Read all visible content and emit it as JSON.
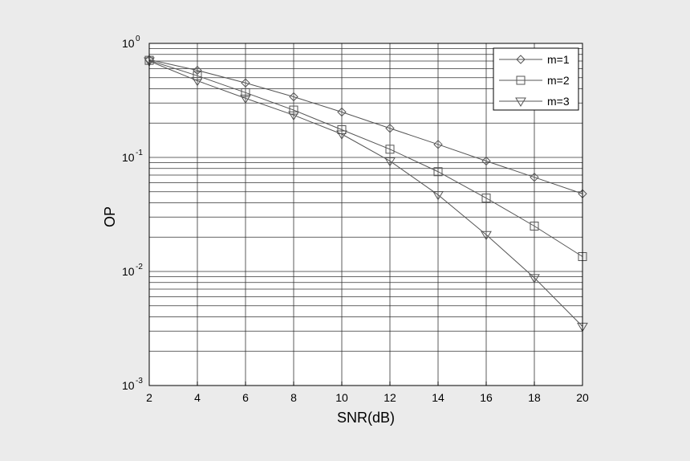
{
  "chart_data": {
    "type": "line",
    "title": "",
    "xlabel": "SNR(dB)",
    "ylabel": "OP",
    "xlim": [
      2,
      20
    ],
    "ylim": [
      0.001,
      1
    ],
    "yscale": "log",
    "grid": true,
    "legend_position": "top-right",
    "x": [
      2,
      4,
      6,
      8,
      10,
      12,
      14,
      16,
      18,
      20
    ],
    "x_ticks": [
      "2",
      "4",
      "6",
      "8",
      "10",
      "12",
      "14",
      "16",
      "18",
      "20"
    ],
    "y_ticks": [
      {
        "base": "10",
        "exp": "0",
        "value": 1
      },
      {
        "base": "10",
        "exp": "-1",
        "value": 0.1
      },
      {
        "base": "10",
        "exp": "-2",
        "value": 0.01
      },
      {
        "base": "10",
        "exp": "-3",
        "value": 0.001
      }
    ],
    "series": [
      {
        "name": "m=1",
        "marker": "diamond",
        "values": [
          0.72,
          0.58,
          0.45,
          0.34,
          0.25,
          0.18,
          0.13,
          0.093,
          0.067,
          0.048
        ]
      },
      {
        "name": "m=2",
        "marker": "square",
        "values": [
          0.71,
          0.52,
          0.37,
          0.26,
          0.175,
          0.118,
          0.075,
          0.044,
          0.025,
          0.0135
        ]
      },
      {
        "name": "m=3",
        "marker": "triangle-down",
        "values": [
          0.7,
          0.47,
          0.33,
          0.235,
          0.16,
          0.093,
          0.047,
          0.021,
          0.0088,
          0.0033
        ]
      }
    ],
    "colors": {
      "line": "#555555",
      "marker": "#555555",
      "grid": "#333333",
      "axes": "#000000",
      "plot_bg": "#ffffff",
      "page_bg": "#ebebeb"
    }
  }
}
